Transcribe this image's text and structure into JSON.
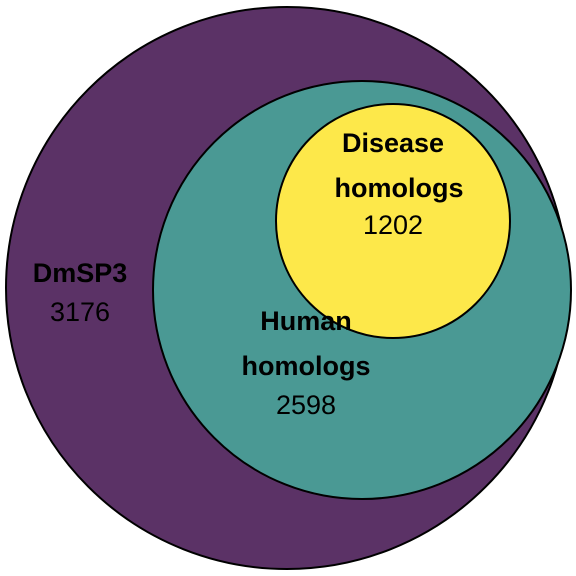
{
  "diagram": {
    "type": "nested-venn",
    "sets": [
      {
        "id": "dmsp3",
        "name": "DmSP3",
        "count": "3176",
        "color": "#5b3266"
      },
      {
        "id": "human",
        "name_line1": "Human",
        "name_line2": "homologs",
        "count": "2598",
        "color": "#4a9994"
      },
      {
        "id": "disease",
        "name_line1": "Disease",
        "name_line2": "homologs",
        "count": "1202",
        "color": "#fde84a"
      }
    ],
    "stroke_color": "#000000"
  }
}
